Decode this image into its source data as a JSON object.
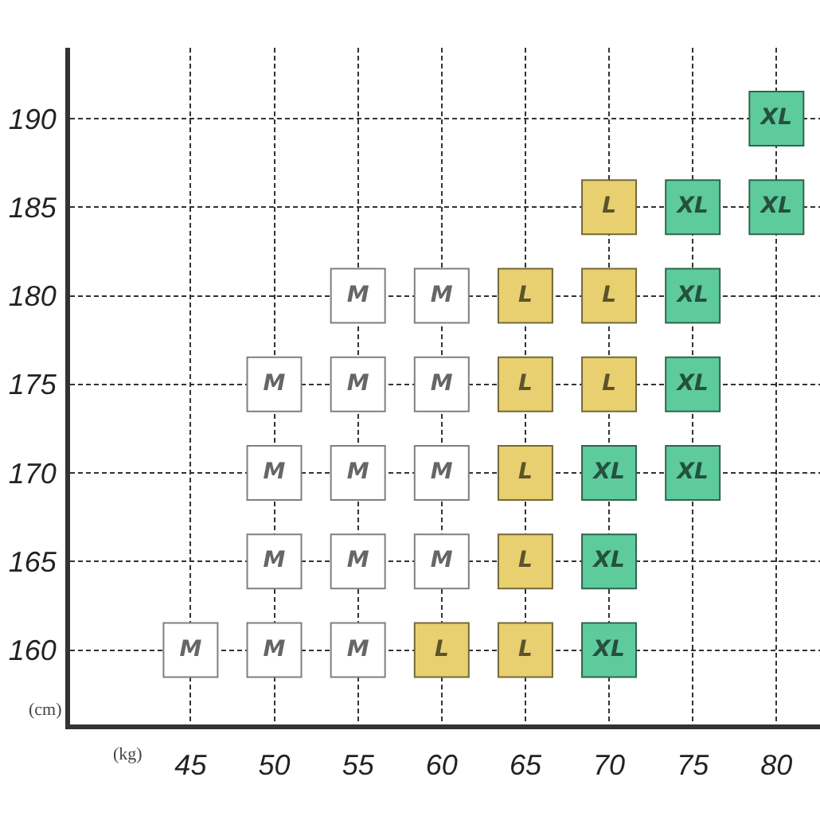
{
  "chart_data": {
    "type": "scatter",
    "xlabel": "(kg)",
    "ylabel": "(cm)",
    "xlim": [
      37.8,
      82.6
    ],
    "ylim": [
      155.8,
      194
    ],
    "xticks": [
      45,
      50,
      55,
      60,
      65,
      70,
      75,
      80
    ],
    "yticks": [
      160,
      165,
      170,
      175,
      180,
      185,
      190
    ],
    "grid": true,
    "legend": false,
    "marker": "square",
    "series": [
      {
        "name": "M",
        "color": "#ffffff",
        "x": [
          45,
          50,
          50,
          50,
          50,
          55,
          55,
          55,
          55,
          55,
          60,
          60,
          60,
          60
        ],
        "values": [
          160,
          160,
          165,
          170,
          175,
          160,
          165,
          170,
          175,
          180,
          165,
          170,
          175,
          180
        ]
      },
      {
        "name": "L",
        "color": "#e8d070",
        "x": [
          60,
          65,
          65,
          65,
          65,
          65,
          70,
          70,
          70
        ],
        "values": [
          160,
          160,
          165,
          170,
          175,
          180,
          175,
          180,
          185
        ]
      },
      {
        "name": "XL",
        "color": "#5ecb9c",
        "x": [
          70,
          70,
          70,
          75,
          75,
          75,
          75,
          80,
          80
        ],
        "values": [
          160,
          165,
          170,
          170,
          175,
          180,
          185,
          185,
          190
        ]
      }
    ]
  }
}
